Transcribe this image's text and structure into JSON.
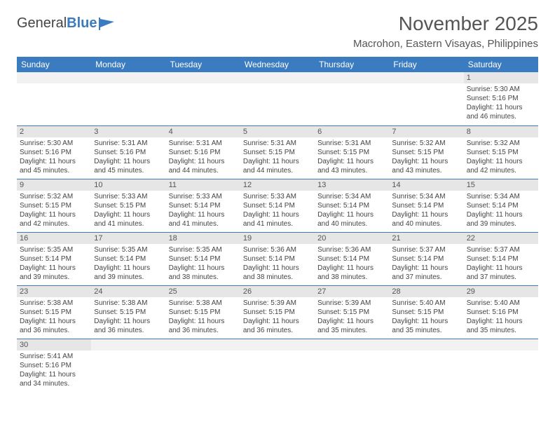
{
  "logo": {
    "general": "General",
    "blue": "Blue"
  },
  "title": "November 2025",
  "location": "Macrohon, Eastern Visayas, Philippines",
  "colors": {
    "header_bg": "#3b7bbf",
    "header_fg": "#ffffff",
    "daynum_bg": "#e6e6e6",
    "border": "#3b7bbf",
    "text": "#444444"
  },
  "day_headers": [
    "Sunday",
    "Monday",
    "Tuesday",
    "Wednesday",
    "Thursday",
    "Friday",
    "Saturday"
  ],
  "weeks": [
    [
      null,
      null,
      null,
      null,
      null,
      null,
      {
        "n": "1",
        "sr": "5:30 AM",
        "ss": "5:16 PM",
        "dl": "11 hours and 46 minutes."
      }
    ],
    [
      {
        "n": "2",
        "sr": "5:30 AM",
        "ss": "5:16 PM",
        "dl": "11 hours and 45 minutes."
      },
      {
        "n": "3",
        "sr": "5:31 AM",
        "ss": "5:16 PM",
        "dl": "11 hours and 45 minutes."
      },
      {
        "n": "4",
        "sr": "5:31 AM",
        "ss": "5:16 PM",
        "dl": "11 hours and 44 minutes."
      },
      {
        "n": "5",
        "sr": "5:31 AM",
        "ss": "5:15 PM",
        "dl": "11 hours and 44 minutes."
      },
      {
        "n": "6",
        "sr": "5:31 AM",
        "ss": "5:15 PM",
        "dl": "11 hours and 43 minutes."
      },
      {
        "n": "7",
        "sr": "5:32 AM",
        "ss": "5:15 PM",
        "dl": "11 hours and 43 minutes."
      },
      {
        "n": "8",
        "sr": "5:32 AM",
        "ss": "5:15 PM",
        "dl": "11 hours and 42 minutes."
      }
    ],
    [
      {
        "n": "9",
        "sr": "5:32 AM",
        "ss": "5:15 PM",
        "dl": "11 hours and 42 minutes."
      },
      {
        "n": "10",
        "sr": "5:33 AM",
        "ss": "5:15 PM",
        "dl": "11 hours and 41 minutes."
      },
      {
        "n": "11",
        "sr": "5:33 AM",
        "ss": "5:14 PM",
        "dl": "11 hours and 41 minutes."
      },
      {
        "n": "12",
        "sr": "5:33 AM",
        "ss": "5:14 PM",
        "dl": "11 hours and 41 minutes."
      },
      {
        "n": "13",
        "sr": "5:34 AM",
        "ss": "5:14 PM",
        "dl": "11 hours and 40 minutes."
      },
      {
        "n": "14",
        "sr": "5:34 AM",
        "ss": "5:14 PM",
        "dl": "11 hours and 40 minutes."
      },
      {
        "n": "15",
        "sr": "5:34 AM",
        "ss": "5:14 PM",
        "dl": "11 hours and 39 minutes."
      }
    ],
    [
      {
        "n": "16",
        "sr": "5:35 AM",
        "ss": "5:14 PM",
        "dl": "11 hours and 39 minutes."
      },
      {
        "n": "17",
        "sr": "5:35 AM",
        "ss": "5:14 PM",
        "dl": "11 hours and 39 minutes."
      },
      {
        "n": "18",
        "sr": "5:35 AM",
        "ss": "5:14 PM",
        "dl": "11 hours and 38 minutes."
      },
      {
        "n": "19",
        "sr": "5:36 AM",
        "ss": "5:14 PM",
        "dl": "11 hours and 38 minutes."
      },
      {
        "n": "20",
        "sr": "5:36 AM",
        "ss": "5:14 PM",
        "dl": "11 hours and 38 minutes."
      },
      {
        "n": "21",
        "sr": "5:37 AM",
        "ss": "5:14 PM",
        "dl": "11 hours and 37 minutes."
      },
      {
        "n": "22",
        "sr": "5:37 AM",
        "ss": "5:14 PM",
        "dl": "11 hours and 37 minutes."
      }
    ],
    [
      {
        "n": "23",
        "sr": "5:38 AM",
        "ss": "5:15 PM",
        "dl": "11 hours and 36 minutes."
      },
      {
        "n": "24",
        "sr": "5:38 AM",
        "ss": "5:15 PM",
        "dl": "11 hours and 36 minutes."
      },
      {
        "n": "25",
        "sr": "5:38 AM",
        "ss": "5:15 PM",
        "dl": "11 hours and 36 minutes."
      },
      {
        "n": "26",
        "sr": "5:39 AM",
        "ss": "5:15 PM",
        "dl": "11 hours and 36 minutes."
      },
      {
        "n": "27",
        "sr": "5:39 AM",
        "ss": "5:15 PM",
        "dl": "11 hours and 35 minutes."
      },
      {
        "n": "28",
        "sr": "5:40 AM",
        "ss": "5:15 PM",
        "dl": "11 hours and 35 minutes."
      },
      {
        "n": "29",
        "sr": "5:40 AM",
        "ss": "5:16 PM",
        "dl": "11 hours and 35 minutes."
      }
    ],
    [
      {
        "n": "30",
        "sr": "5:41 AM",
        "ss": "5:16 PM",
        "dl": "11 hours and 34 minutes."
      },
      null,
      null,
      null,
      null,
      null,
      null
    ]
  ],
  "labels": {
    "sunrise": "Sunrise:",
    "sunset": "Sunset:",
    "daylight": "Daylight:"
  }
}
